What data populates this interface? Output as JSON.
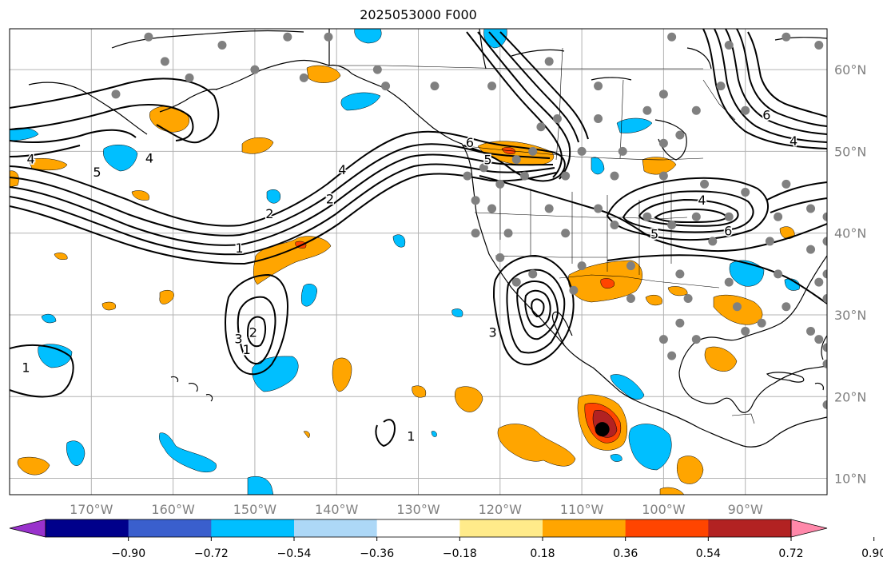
{
  "title": "2025053000 F000",
  "map": {
    "lon_range": [
      -180,
      -80
    ],
    "lat_range": [
      8,
      65
    ],
    "lon_ticks": [
      "170°W",
      "160°W",
      "150°W",
      "140°W",
      "130°W",
      "120°W",
      "110°W",
      "100°W",
      "90°W"
    ],
    "lat_ticks": [
      "10°N",
      "20°N",
      "30°N",
      "40°N",
      "50°N",
      "60°N"
    ],
    "grid": true,
    "tick_label_color": "#808080"
  },
  "contour_labels": [
    {
      "text": "4",
      "lon": -177.4,
      "lat": 49.1
    },
    {
      "text": "5",
      "lon": -169.3,
      "lat": 47.5
    },
    {
      "text": "4",
      "lon": -162.9,
      "lat": 49.2
    },
    {
      "text": "4",
      "lon": -139.3,
      "lat": 47.8
    },
    {
      "text": "2",
      "lon": -140.8,
      "lat": 44.2
    },
    {
      "text": "2",
      "lon": -148.2,
      "lat": 42.4
    },
    {
      "text": "1",
      "lon": -151.9,
      "lat": 38.2
    },
    {
      "text": "6",
      "lon": -123.7,
      "lat": 51.1
    },
    {
      "text": "5",
      "lon": -121.5,
      "lat": 49.0
    },
    {
      "text": "6",
      "lon": -87.4,
      "lat": 54.5
    },
    {
      "text": "4",
      "lon": -84.1,
      "lat": 51.3
    },
    {
      "text": "5",
      "lon": -101.1,
      "lat": 39.9
    },
    {
      "text": "4",
      "lon": -95.3,
      "lat": 44.1
    },
    {
      "text": "6",
      "lon": -92.1,
      "lat": 40.3
    },
    {
      "text": "1",
      "lon": -178.0,
      "lat": 23.6
    },
    {
      "text": "1",
      "lon": -151.0,
      "lat": 25.8
    },
    {
      "text": "2",
      "lon": -150.2,
      "lat": 27.9
    },
    {
      "text": "3",
      "lon": -152.0,
      "lat": 27.1
    },
    {
      "text": "3",
      "lon": -120.9,
      "lat": 27.9
    },
    {
      "text": "1",
      "lon": -130.9,
      "lat": 15.2
    }
  ],
  "markers": {
    "storm_center": {
      "lon": -107.5,
      "lat": 16.0,
      "color": "#000000"
    },
    "station_color": "#808080"
  },
  "colorbar": {
    "ticks": [
      "−0.90",
      "−0.72",
      "−0.54",
      "−0.36",
      "−0.18",
      "0.18",
      "0.36",
      "0.54",
      "0.72",
      "0.90"
    ],
    "colors": [
      "#9932CC",
      "#00008B",
      "#3A5FCD",
      "#00BFFF",
      "#ADD8F7",
      "#FFFFFF",
      "#FFEB8A",
      "#FFA500",
      "#FF4500",
      "#B22222",
      "#FF88AA"
    ]
  }
}
